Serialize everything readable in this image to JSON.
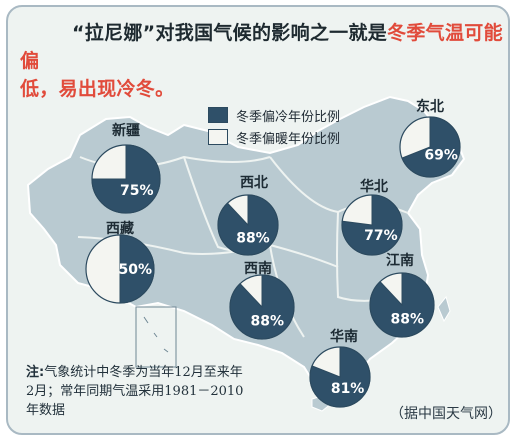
{
  "title": {
    "line1_prefix": "“拉尼娜”对我国气候的影响之一就是",
    "line1_highlight": "冬季气温可能偏",
    "line2_highlight": "低，易出现冷冬。"
  },
  "legend": {
    "cold_label": "冬季偏冷年份比例",
    "warm_label": "冬季偏暖年份比例"
  },
  "note": {
    "label": "注:",
    "text": "气象统计中冬季为当年12月至来年2月；常年同期气温采用1981－2010年数据"
  },
  "source": "（据中国天气网）",
  "colors": {
    "cold": "#2f5069",
    "warm": "#f4f5f1",
    "map_fill": "#b9cad1",
    "map_stroke": "#ffffff",
    "title_highlight": "#e14b3b"
  },
  "chart_data": {
    "type": "pie",
    "series_names": [
      "冬季偏冷年份比例",
      "冬季偏暖年份比例"
    ],
    "regions": [
      {
        "name": "新疆",
        "cold_pct": 75,
        "label": "75%"
      },
      {
        "name": "西藏",
        "cold_pct": 50,
        "label": "50%"
      },
      {
        "name": "西北",
        "cold_pct": 88,
        "label": "88%"
      },
      {
        "name": "西南",
        "cold_pct": 88,
        "label": "88%"
      },
      {
        "name": "华北",
        "cold_pct": 77,
        "label": "77%"
      },
      {
        "name": "东北",
        "cold_pct": 69,
        "label": "69%"
      },
      {
        "name": "江南",
        "cold_pct": 88,
        "label": "88%"
      },
      {
        "name": "华南",
        "cold_pct": 81,
        "label": "81%"
      }
    ]
  }
}
